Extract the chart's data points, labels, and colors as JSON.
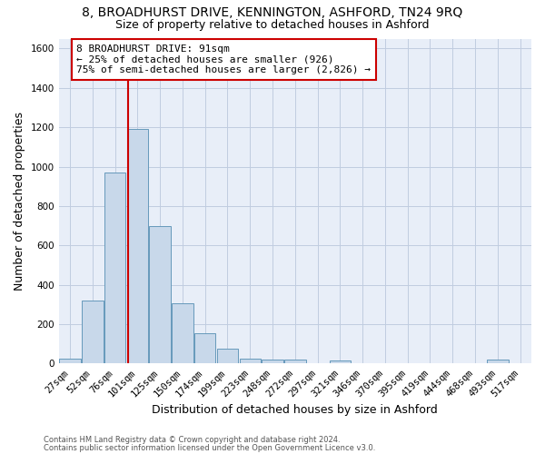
{
  "title": "8, BROADHURST DRIVE, KENNINGTON, ASHFORD, TN24 9RQ",
  "subtitle": "Size of property relative to detached houses in Ashford",
  "xlabel": "Distribution of detached houses by size in Ashford",
  "ylabel": "Number of detached properties",
  "bar_labels": [
    "27sqm",
    "52sqm",
    "76sqm",
    "101sqm",
    "125sqm",
    "150sqm",
    "174sqm",
    "199sqm",
    "223sqm",
    "248sqm",
    "272sqm",
    "297sqm",
    "321sqm",
    "346sqm",
    "370sqm",
    "395sqm",
    "419sqm",
    "444sqm",
    "468sqm",
    "493sqm",
    "517sqm"
  ],
  "bar_values": [
    25,
    320,
    970,
    1190,
    700,
    305,
    155,
    75,
    25,
    20,
    20,
    0,
    15,
    0,
    0,
    0,
    0,
    0,
    0,
    20,
    0
  ],
  "bar_color": "#c8d8ea",
  "bar_edge_color": "#6699bb",
  "ylim": [
    0,
    1650
  ],
  "yticks": [
    0,
    200,
    400,
    600,
    800,
    1000,
    1200,
    1400,
    1600
  ],
  "annotation_text": "8 BROADHURST DRIVE: 91sqm\n← 25% of detached houses are smaller (926)\n75% of semi-detached houses are larger (2,826) →",
  "footnote1": "Contains HM Land Registry data © Crown copyright and database right 2024.",
  "footnote2": "Contains public sector information licensed under the Open Government Licence v3.0.",
  "bg_color": "#ffffff",
  "plot_bg_color": "#e8eef8",
  "grid_color": "#c0cce0",
  "annotation_box_color": "#ffffff",
  "annotation_box_edge": "#cc0000",
  "red_line_color": "#cc0000",
  "title_fontsize": 10,
  "subtitle_fontsize": 9,
  "ylabel_fontsize": 9,
  "xlabel_fontsize": 9,
  "tick_fontsize": 7.5,
  "annotation_fontsize": 8,
  "footnote_fontsize": 6
}
